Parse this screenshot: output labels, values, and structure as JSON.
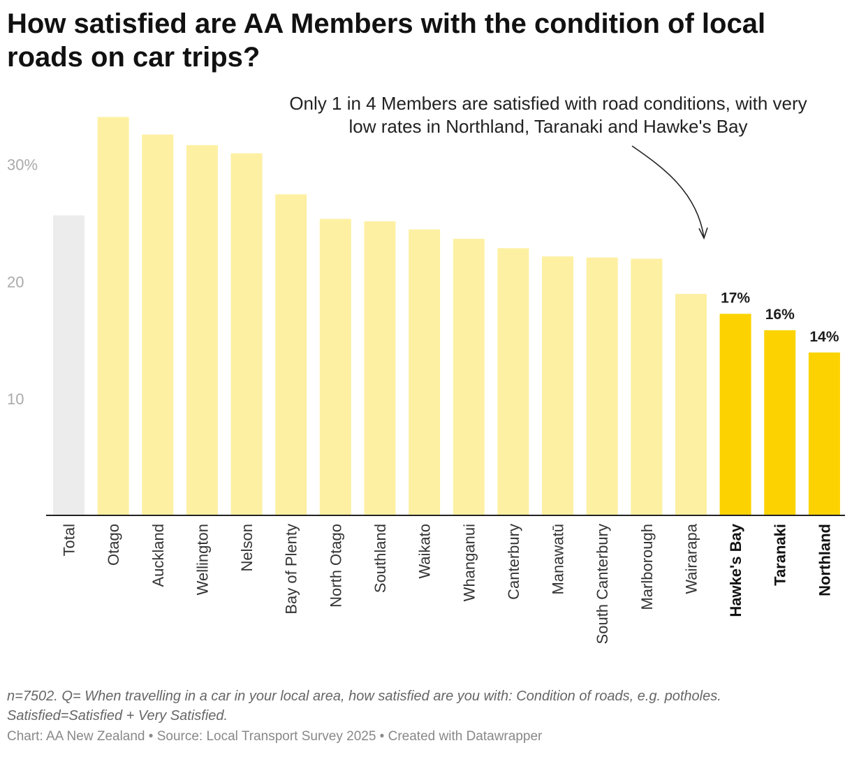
{
  "title": "How satisfied are AA Members with the condition of local roads on car trips?",
  "annotation": {
    "line1": "Only 1 in 4 Members are satisfied with road conditions, with very",
    "line2": "low rates in Northland, Taranaki and Hawke's Bay"
  },
  "notes": {
    "line1": "n=7502. Q= When travelling in a car in your local area, how satisfied are you with: Condition of roads, e.g. potholes.",
    "line2": "Satisfied=Satisfied + Very Satisfied."
  },
  "credit": {
    "chart": "Chart: AA New Zealand",
    "source": "Source: Local Transport Survey 2025",
    "tool": "Created with Datawrapper",
    "separator": " • "
  },
  "colors": {
    "total": "#ececec",
    "region": "#fdf0a3",
    "highlight": "#fcd300",
    "axis": "#222222",
    "ticklabel": "#aaaaaa"
  },
  "chart_data": {
    "type": "bar",
    "title": "How satisfied are AA Members with the condition of local roads on car trips?",
    "xlabel": "",
    "ylabel": "",
    "ylim": [
      0,
      34
    ],
    "yticks": [
      {
        "value": 10,
        "label": "10"
      },
      {
        "value": 20,
        "label": "20"
      },
      {
        "value": 30,
        "label": "30%"
      }
    ],
    "grid": false,
    "categories": [
      "Total",
      "Otago",
      "Auckland",
      "Wellington",
      "Nelson",
      "Bay of Plenty",
      "North Otago",
      "Southland",
      "Waikato",
      "Whanganui",
      "Canterbury",
      "Manawatū",
      "South Canterbury",
      "Marlborough",
      "Wairarapa",
      "Hawke's Bay",
      "Taranaki",
      "Northland"
    ],
    "values": [
      25.6,
      34.0,
      32.5,
      31.6,
      30.9,
      27.4,
      25.3,
      25.1,
      24.4,
      23.6,
      22.8,
      22.1,
      22.0,
      21.9,
      18.9,
      17.2,
      15.8,
      13.9
    ],
    "highlight": [
      "Hawke's Bay",
      "Taranaki",
      "Northland"
    ],
    "data_labels": {
      "Hawke's Bay": "17%",
      "Taranaki": "16%",
      "Northland": "14%"
    }
  }
}
